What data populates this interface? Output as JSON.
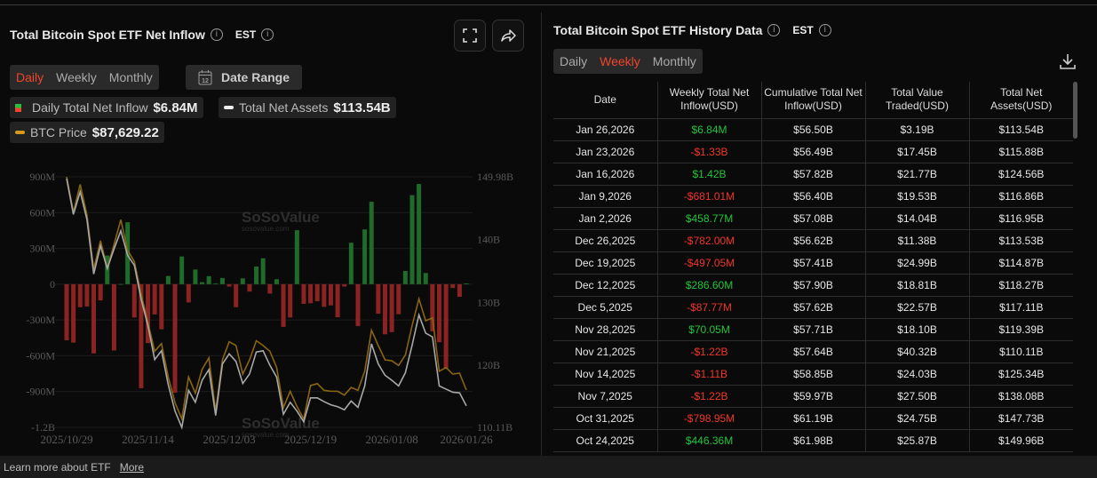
{
  "left_panel": {
    "title": "Total Bitcoin Spot ETF Net Inflow",
    "timezone": "EST",
    "period_tabs": [
      "Daily",
      "Weekly",
      "Monthly"
    ],
    "active_period": "Daily",
    "date_range_label": "Date Range",
    "calendar_day": "12",
    "legend": {
      "inflow_label": "Daily Total Net Inflow",
      "inflow_value": "$6.84M",
      "assets_label": "Total Net Assets",
      "assets_value": "$113.54B",
      "btc_label": "BTC Price",
      "btc_value": "$87,629.22"
    },
    "watermark": "SoSoValue",
    "watermark_url": "sosovalue.com"
  },
  "chart_data": {
    "type": "bar+line",
    "x_tick_labels": [
      "2025/10/29",
      "2025/11/14",
      "2025/12/03",
      "2025/12/19",
      "2026/01/08",
      "2026/01/26"
    ],
    "y_left_ticks": [
      "900M",
      "600M",
      "300M",
      "0",
      "-300M",
      "-600M",
      "-900M",
      "-1.2B"
    ],
    "y_left_range_musd": [
      -1200,
      900
    ],
    "y_right_ticks": [
      "149.98B",
      "140B",
      "130B",
      "120B",
      "110.11B"
    ],
    "y_right_range_busd": [
      110.11,
      149.98
    ],
    "grid": true,
    "colors": {
      "positive": "#1f6b2a",
      "negative": "#8b2323",
      "assets": "#a8a8a8",
      "btc": "#8a6510"
    },
    "dates": [
      "2025-10-29",
      "2025-10-30",
      "2025-10-31",
      "2025-11-03",
      "2025-11-04",
      "2025-11-05",
      "2025-11-06",
      "2025-11-07",
      "2025-11-10",
      "2025-11-11",
      "2025-11-12",
      "2025-11-13",
      "2025-11-14",
      "2025-11-17",
      "2025-11-18",
      "2025-11-19",
      "2025-11-20",
      "2025-11-21",
      "2025-11-24",
      "2025-11-25",
      "2025-11-26",
      "2025-11-28",
      "2025-12-01",
      "2025-12-02",
      "2025-12-03",
      "2025-12-04",
      "2025-12-05",
      "2025-12-08",
      "2025-12-09",
      "2025-12-10",
      "2025-12-11",
      "2025-12-12",
      "2025-12-15",
      "2025-12-16",
      "2025-12-17",
      "2025-12-18",
      "2025-12-19",
      "2025-12-22",
      "2025-12-23",
      "2025-12-24",
      "2025-12-26",
      "2025-12-29",
      "2025-12-30",
      "2025-12-31",
      "2026-01-02",
      "2026-01-05",
      "2026-01-06",
      "2026-01-07",
      "2026-01-08",
      "2026-01-09",
      "2026-01-12",
      "2026-01-13",
      "2026-01-14",
      "2026-01-15",
      "2026-01-16",
      "2026-01-20",
      "2026-01-21",
      "2026-01-22",
      "2026-01-23",
      "2026-01-26"
    ],
    "series": [
      {
        "name": "Daily Total Net Inflow",
        "unit": "M USD",
        "type": "bar",
        "values": [
          -470,
          -490,
          -193,
          -187,
          -580,
          -136,
          240,
          -556,
          1,
          519,
          -279,
          -872,
          -494,
          -254,
          -378,
          69,
          -909,
          232,
          -153,
          123,
          17,
          67,
          5,
          52,
          -20,
          -193,
          49,
          -62,
          148,
          217,
          -79,
          42,
          -358,
          -279,
          452,
          -165,
          -160,
          -143,
          -190,
          -178,
          -277,
          -20,
          348,
          -351,
          459,
          691,
          -247,
          -420,
          -402,
          -252,
          111,
          746,
          840,
          94,
          -395,
          -486,
          -711,
          -32,
          -106,
          6.84
        ]
      },
      {
        "name": "Total Net Assets",
        "unit": "B USD",
        "type": "line",
        "axis": "right",
        "values": [
          149.7,
          144.0,
          147.6,
          143.2,
          134.5,
          139.0,
          135.4,
          138.5,
          141.4,
          137.5,
          135.9,
          130.5,
          126.3,
          120.9,
          122.3,
          116.9,
          112.7,
          110.1,
          116.0,
          114.1,
          117.6,
          119.3,
          112.0,
          120.2,
          121.8,
          120.6,
          117.1,
          118.6,
          122.1,
          122.3,
          120.0,
          118.1,
          112.2,
          114.1,
          112.7,
          111.0,
          114.8,
          114.8,
          114.2,
          113.7,
          113.4,
          112.9,
          114.3,
          113.3,
          116.7,
          123.4,
          120.2,
          118.4,
          117.6,
          116.7,
          118.8,
          123.2,
          128.0,
          125.1,
          124.5,
          116.7,
          116.2,
          115.7,
          115.6,
          113.54
        ]
      },
      {
        "name": "BTC Price",
        "unit": "USD",
        "type": "line",
        "values": [
          110000,
          106300,
          109200,
          106000,
          100300,
          103300,
          100400,
          102900,
          105500,
          102300,
          101100,
          97700,
          94700,
          91700,
          92500,
          89000,
          86300,
          84600,
          89000,
          87300,
          89800,
          91000,
          85400,
          90800,
          92700,
          92300,
          89300,
          90800,
          92800,
          92300,
          91700,
          90000,
          85800,
          87500,
          85900,
          84600,
          88100,
          88300,
          87600,
          87500,
          87500,
          87100,
          87900,
          87600,
          89600,
          93900,
          92300,
          90800,
          90700,
          90200,
          91300,
          94400,
          97200,
          94900,
          95200,
          89600,
          90000,
          89300,
          89400,
          87629.22
        ]
      }
    ]
  },
  "right_panel": {
    "title": "Total Bitcoin Spot ETF History Data",
    "timezone": "EST",
    "period_tabs": [
      "Daily",
      "Weekly",
      "Monthly"
    ],
    "active_period": "Weekly",
    "columns": [
      "Date",
      "Weekly Total Net Inflow(USD)",
      "Cumulative Total Net Inflow(USD)",
      "Total Value Traded(USD)",
      "Total Net Assets(USD)"
    ],
    "rows": [
      [
        "Jan 26,2026",
        "$6.84M",
        "$56.50B",
        "$3.19B",
        "$113.54B"
      ],
      [
        "Jan 23,2026",
        "-$1.33B",
        "$56.49B",
        "$17.45B",
        "$115.88B"
      ],
      [
        "Jan 16,2026",
        "$1.42B",
        "$57.82B",
        "$21.77B",
        "$124.56B"
      ],
      [
        "Jan 9,2026",
        "-$681.01M",
        "$56.40B",
        "$19.53B",
        "$116.86B"
      ],
      [
        "Jan 2,2026",
        "$458.77M",
        "$57.08B",
        "$14.04B",
        "$116.95B"
      ],
      [
        "Dec 26,2025",
        "-$782.00M",
        "$56.62B",
        "$11.38B",
        "$113.53B"
      ],
      [
        "Dec 19,2025",
        "-$497.05M",
        "$57.41B",
        "$24.99B",
        "$114.87B"
      ],
      [
        "Dec 12,2025",
        "$286.60M",
        "$57.90B",
        "$18.81B",
        "$118.27B"
      ],
      [
        "Dec 5,2025",
        "-$87.77M",
        "$57.62B",
        "$22.57B",
        "$117.11B"
      ],
      [
        "Nov 28,2025",
        "$70.05M",
        "$57.71B",
        "$18.10B",
        "$119.39B"
      ],
      [
        "Nov 21,2025",
        "-$1.22B",
        "$57.64B",
        "$40.32B",
        "$110.11B"
      ],
      [
        "Nov 14,2025",
        "-$1.11B",
        "$58.85B",
        "$24.03B",
        "$125.34B"
      ],
      [
        "Nov 7,2025",
        "-$1.22B",
        "$59.97B",
        "$27.50B",
        "$138.08B"
      ],
      [
        "Oct 31,2025",
        "-$798.95M",
        "$61.19B",
        "$24.75B",
        "$147.73B"
      ],
      [
        "Oct 24,2025",
        "$446.36M",
        "$61.98B",
        "$25.87B",
        "$149.96B"
      ]
    ]
  },
  "footer": {
    "text": "Learn more about ETF",
    "link": "More"
  }
}
